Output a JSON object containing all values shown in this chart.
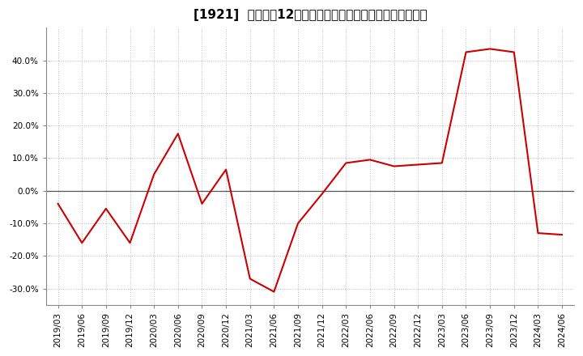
{
  "title": "[1921]  売上高の12か月移動合計の対前年同期増減率の推移",
  "line_color": "#cc0000",
  "background_color": "#ffffff",
  "plot_bg_color": "#ffffff",
  "grid_color": "#bbbbbb",
  "x_labels": [
    "2019/03",
    "2019/06",
    "2019/09",
    "2019/12",
    "2020/03",
    "2020/06",
    "2020/09",
    "2020/12",
    "2021/03",
    "2021/06",
    "2021/09",
    "2021/12",
    "2022/03",
    "2022/06",
    "2022/09",
    "2022/12",
    "2023/03",
    "2023/06",
    "2023/09",
    "2023/12",
    "2024/03",
    "2024/06"
  ],
  "y_values": [
    -4.0,
    -16.0,
    -5.5,
    -16.0,
    5.0,
    17.5,
    -4.0,
    6.5,
    -27.0,
    -31.0,
    -10.0,
    -1.0,
    8.5,
    9.5,
    7.5,
    8.0,
    8.5,
    42.5,
    43.5,
    42.5,
    -13.0,
    -13.5
  ],
  "ylim": [
    -35,
    50
  ],
  "yticks": [
    -30,
    -20,
    -10,
    0,
    10,
    20,
    30,
    40
  ],
  "title_fontsize": 11,
  "tick_fontsize": 7.5
}
